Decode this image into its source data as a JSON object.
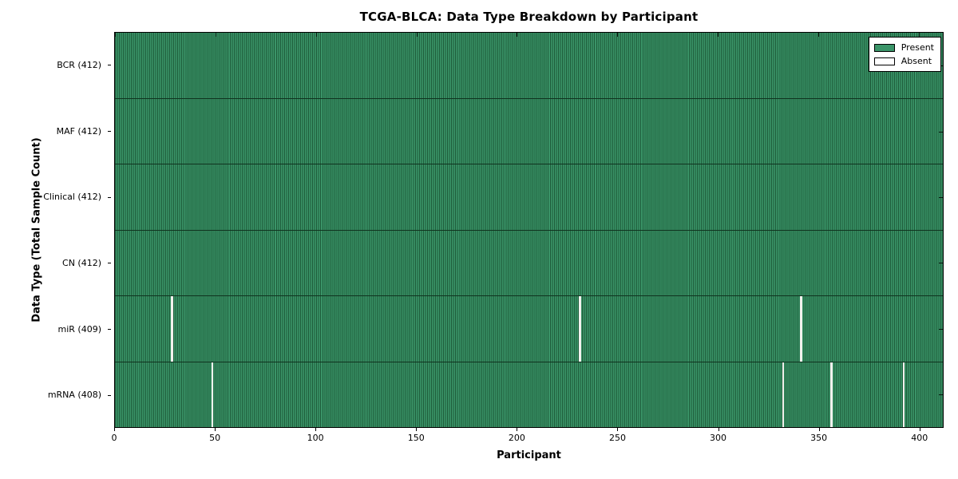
{
  "chart_data": {
    "type": "heatmap",
    "title": "TCGA-BLCA: Data Type Breakdown by Participant",
    "xlabel": "Participant",
    "ylabel": "Data Type (Total Sample Count)",
    "x_range": [
      0,
      412
    ],
    "x_ticks": [
      0,
      50,
      100,
      150,
      200,
      250,
      300,
      350,
      400
    ],
    "n_participants": 412,
    "grid": false,
    "legend_position": "upper right",
    "legend": [
      {
        "label": "Present",
        "swatch": "present"
      },
      {
        "label": "Absent",
        "swatch": "absent"
      }
    ],
    "rows": [
      {
        "label": "BCR (412)",
        "data_type": "BCR",
        "total": 412,
        "absent_participants": []
      },
      {
        "label": "MAF (412)",
        "data_type": "MAF",
        "total": 412,
        "absent_participants": []
      },
      {
        "label": "Clinical (412)",
        "data_type": "Clinical",
        "total": 412,
        "absent_participants": []
      },
      {
        "label": "CN (412)",
        "data_type": "CN",
        "total": 412,
        "absent_participants": []
      },
      {
        "label": "miR (409)",
        "data_type": "miR",
        "total": 409,
        "absent_participants": [
          28,
          231,
          341
        ]
      },
      {
        "label": "mRNA (408)",
        "data_type": "mRNA",
        "total": 408,
        "absent_participants": [
          48,
          332,
          356,
          392
        ]
      }
    ]
  },
  "colors": {
    "present_fill": "#3a9468",
    "present_edge": "#1e5c3a",
    "absent_fill": "#f2f2ee",
    "frame": "#000000",
    "background": "#ffffff"
  }
}
